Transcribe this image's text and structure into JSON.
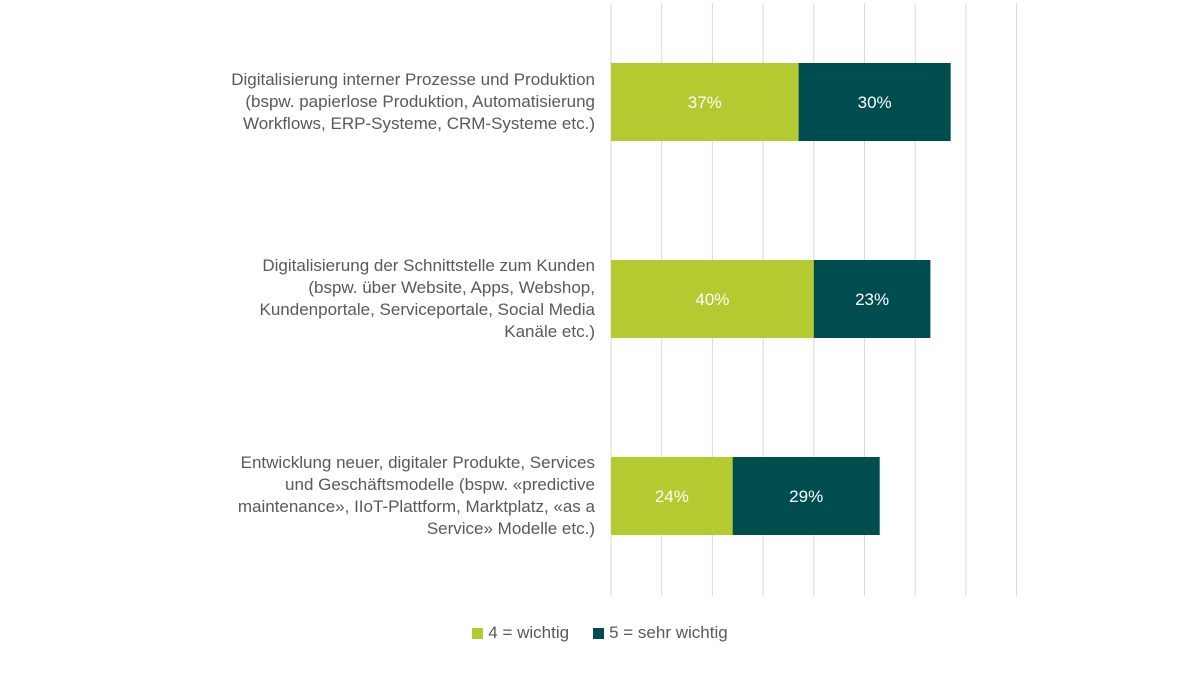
{
  "chart_data": {
    "type": "bar",
    "orientation": "horizontal",
    "stacked": true,
    "categories": [
      "Digitalisierung interner Prozesse und Produktion (bspw. papierlose Produktion, Automatisierung Workflows, ERP-Systeme, CRM-Systeme etc.)",
      "Digitalisierung der Schnittstelle zum Kunden (bspw. über Website, Apps, Webshop, Kundenportale, Serviceportale, Social Media Kanäle etc.)",
      "Entwicklung neuer, digitaler Produkte, Services und Geschäftsmodelle (bspw. «predictive maintenance», IIoT-Plattform, Marktplatz, «as a Service» Modelle etc.)"
    ],
    "category_lines": [
      [
        "Digitalisierung interner Prozesse und Produktion",
        "(bspw. papierlose Produktion, Automatisierung",
        "Workflows, ERP-Systeme, CRM-Systeme etc.)"
      ],
      [
        "Digitalisierung der Schnittstelle zum Kunden",
        "(bspw. über Website, Apps, Webshop,",
        "Kundenportale, Serviceportale, Social Media",
        "Kanäle etc.)"
      ],
      [
        "Entwicklung neuer, digitaler Produkte, Services",
        "und Geschäftsmodelle (bspw. «predictive",
        "maintenance», IIoT-Plattform, Marktplatz, «as a",
        "Service» Modelle etc.)"
      ]
    ],
    "series": [
      {
        "name": "4 = wichtig",
        "values": [
          37,
          40,
          24
        ],
        "labels": [
          "37%",
          "40%",
          "24%"
        ],
        "color": "#b5c930"
      },
      {
        "name": "5 = sehr wichtig",
        "values": [
          30,
          23,
          29
        ],
        "labels": [
          "30%",
          "23%",
          "29%"
        ],
        "color": "#004d4f"
      }
    ],
    "xlim": [
      0,
      80
    ],
    "grid": true,
    "grid_color": "#d9d9d9",
    "label_color": "#ffffff",
    "legend_position": "bottom",
    "title": "",
    "xlabel": "",
    "ylabel": ""
  }
}
